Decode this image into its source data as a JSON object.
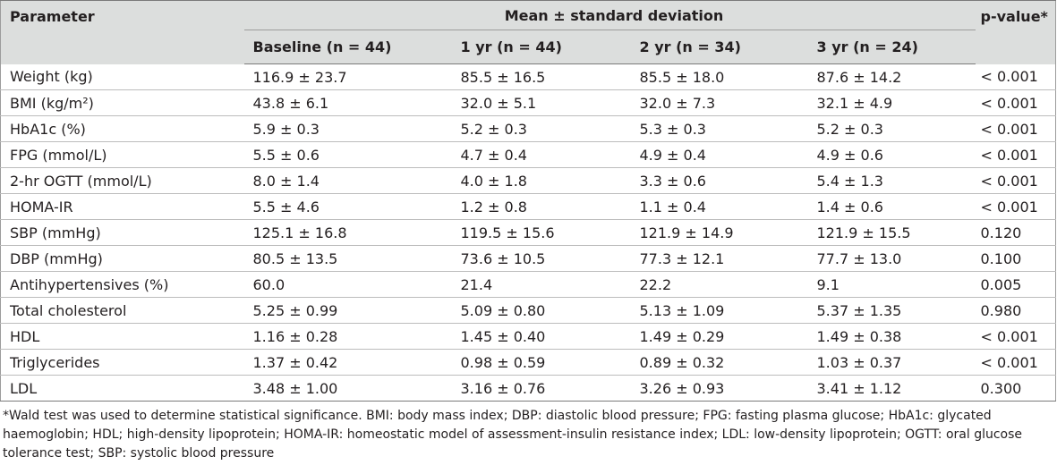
{
  "header": {
    "parameter": "Parameter",
    "mean_sd": "Mean ± standard deviation",
    "p_value": "p-value*",
    "columns": [
      "Baseline (n = 44)",
      "1 yr (n = 44)",
      "2 yr (n = 34)",
      "3 yr (n = 24)"
    ]
  },
  "rows": [
    [
      "Weight (kg)",
      "116.9 ± 23.7",
      "85.5 ± 16.5",
      "85.5 ± 18.0",
      "87.6 ± 14.2",
      "< 0.001"
    ],
    [
      "BMI (kg/m²)",
      "43.8 ± 6.1",
      "32.0 ± 5.1",
      "32.0 ± 7.3",
      "32.1 ± 4.9",
      "< 0.001"
    ],
    [
      "HbA1c (%)",
      "5.9 ± 0.3",
      "5.2 ± 0.3",
      "5.3 ± 0.3",
      "5.2 ± 0.3",
      "< 0.001"
    ],
    [
      "FPG (mmol/L)",
      "5.5 ± 0.6",
      "4.7 ± 0.4",
      "4.9 ± 0.4",
      "4.9 ± 0.6",
      "< 0.001"
    ],
    [
      "2-hr OGTT (mmol/L)",
      "8.0 ± 1.4",
      "4.0 ± 1.8",
      "3.3 ± 0.6",
      "5.4 ± 1.3",
      "< 0.001"
    ],
    [
      "HOMA-IR",
      "5.5 ± 4.6",
      "1.2 ± 0.8",
      "1.1 ± 0.4",
      "1.4 ± 0.6",
      "< 0.001"
    ],
    [
      "SBP (mmHg)",
      "125.1 ± 16.8",
      "119.5 ± 15.6",
      "121.9 ± 14.9",
      "121.9 ± 15.5",
      "0.120"
    ],
    [
      "DBP (mmHg)",
      "80.5 ± 13.5",
      "73.6 ± 10.5",
      "77.3 ± 12.1",
      "77.7 ± 13.0",
      "0.100"
    ],
    [
      "Antihypertensives (%)",
      "60.0",
      "21.4",
      "22.2",
      "9.1",
      "0.005"
    ],
    [
      "Total cholesterol",
      "5.25 ± 0.99",
      "5.09 ± 0.80",
      "5.13 ± 1.09",
      "5.37 ± 1.35",
      "0.980"
    ],
    [
      "HDL",
      "1.16 ± 0.28",
      "1.45 ± 0.40",
      "1.49 ± 0.29",
      "1.49 ± 0.38",
      "< 0.001"
    ],
    [
      "Triglycerides",
      "1.37 ± 0.42",
      "0.98 ± 0.59",
      "0.89 ± 0.32",
      "1.03 ± 0.37",
      "< 0.001"
    ],
    [
      "LDL",
      "3.48 ± 1.00",
      "3.16 ± 0.76",
      "3.26 ± 0.93",
      "3.41 ± 1.12",
      "0.300"
    ]
  ],
  "footnote": "*Wald test was used to determine statistical significance. BMI: body mass index; DBP: diastolic blood pressure; FPG: fasting plasma glucose; HbA1c: glycated haemoglobin; HDL; high-density lipoprotein; HOMA-IR: homeostatic model of assessment-insulin resistance index; LDL: low-density lipoprotein; OGTT: oral glucose tolerance test; SBP: systolic blood pressure"
}
